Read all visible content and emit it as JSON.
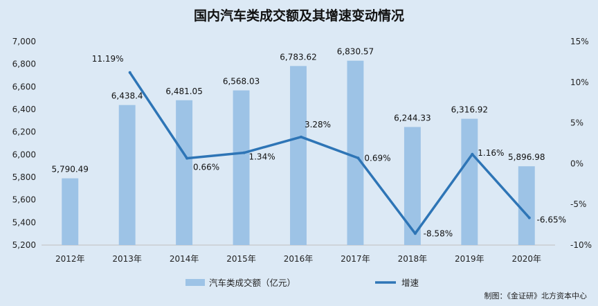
{
  "chart_data": {
    "type": "bar",
    "title": "国内汽车类成交额及其增速变动情况",
    "categories": [
      "2012年",
      "2013年",
      "2014年",
      "2015年",
      "2016年",
      "2017年",
      "2018年",
      "2019年",
      "2020年"
    ],
    "series": [
      {
        "name": "汽车类成交额（亿元）",
        "type": "bar",
        "axis": "left",
        "color": "#9dc3e6",
        "values": [
          5790.49,
          6438.4,
          6481.05,
          6568.03,
          6783.62,
          6830.57,
          6244.33,
          6316.92,
          5896.98
        ],
        "labels": [
          "5,790.49",
          "6,438.4",
          "6,481.05",
          "6,568.03",
          "6,783.62",
          "6,830.57",
          "6,244.33",
          "6,316.92",
          "5,896.98"
        ]
      },
      {
        "name": "增速",
        "type": "line",
        "axis": "right",
        "color": "#2e75b6",
        "values": [
          null,
          11.19,
          0.66,
          1.34,
          3.28,
          0.69,
          -8.58,
          1.16,
          -6.65
        ],
        "labels": [
          "",
          "11.19%",
          "0.66%",
          "1.34%",
          "3.28%",
          "0.69%",
          "-8.58%",
          "1.16%",
          "-6.65%"
        ]
      }
    ],
    "y_left": {
      "ylim": [
        5200,
        7000
      ],
      "ticks": [
        5200,
        5400,
        5600,
        5800,
        6000,
        6200,
        6400,
        6600,
        6800,
        7000
      ],
      "tick_labels": [
        "5,200",
        "5,400",
        "5,600",
        "5,800",
        "6,000",
        "6,200",
        "6,400",
        "6,600",
        "6,800",
        "7,000"
      ]
    },
    "y_right": {
      "ylim": [
        -10,
        15
      ],
      "ticks": [
        -10,
        -5,
        0,
        5,
        10,
        15
      ],
      "tick_labels": [
        "-10%",
        "-5%",
        "0%",
        "5%",
        "10%",
        "15%"
      ]
    },
    "grid": false,
    "legend": "bottom-center"
  },
  "source": "制图：《金证研》北方资本中心"
}
